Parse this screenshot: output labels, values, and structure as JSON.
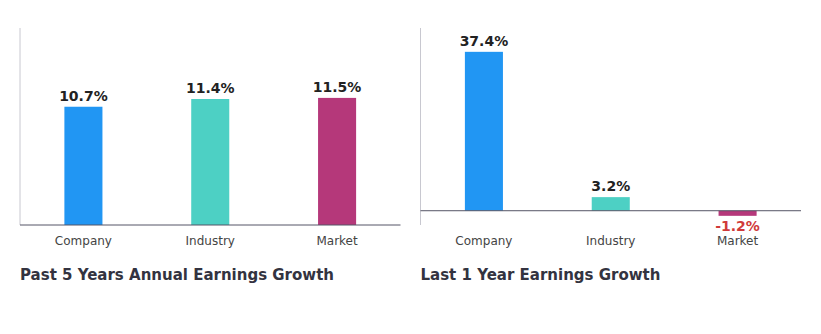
{
  "chart_data": [
    {
      "type": "bar",
      "title": "Past 5 Years Annual Earnings Growth",
      "categories": [
        "Company",
        "Industry",
        "Market"
      ],
      "values": [
        10.7,
        11.4,
        11.5
      ],
      "value_labels": [
        "10.7%",
        "11.4%",
        "11.5%"
      ],
      "colors": [
        "#2196f3",
        "#4dd0c4",
        "#b5387a"
      ],
      "ylim": [
        0,
        17.825
      ],
      "data_labels": true,
      "tick_labels": false,
      "grid": false
    },
    {
      "type": "bar",
      "title": "Last 1 Year Earnings Growth",
      "categories": [
        "Company",
        "Industry",
        "Market"
      ],
      "values": [
        37.4,
        3.2,
        -1.2
      ],
      "value_labels": [
        "37.4%",
        "3.2%",
        "-1.2%"
      ],
      "colors": [
        "#2196f3",
        "#4dd0c4",
        "#b5387a"
      ],
      "ylim": [
        -3.36,
        43.01
      ],
      "data_labels": true,
      "tick_labels": false,
      "grid": false
    }
  ]
}
